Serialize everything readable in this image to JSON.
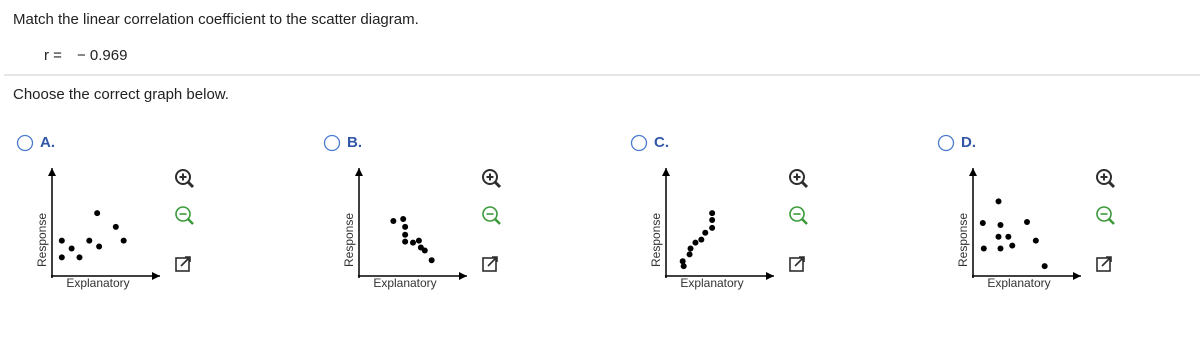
{
  "question": "Match the linear correlation coefficient to the scatter diagram.",
  "correlation": {
    "label": "r =",
    "value": "− 0.969"
  },
  "instruction": "Choose the correct graph below.",
  "options": [
    {
      "letter": "A.",
      "x_label": "Explanatory",
      "y_label": "Response",
      "xlim": [
        0,
        11
      ],
      "ylim": [
        0,
        11
      ],
      "x": [
        4.6,
        1.0,
        3.8,
        6.5,
        7.3,
        2.0,
        4.8,
        2.8,
        1.0
      ],
      "y": [
        6.4,
        3.6,
        3.6,
        5.0,
        3.6,
        2.8,
        3.0,
        1.9,
        1.9
      ]
    },
    {
      "letter": "B.",
      "x_label": "Explanatory",
      "y_label": "Response",
      "xlim": [
        0,
        11
      ],
      "ylim": [
        0,
        11
      ],
      "x": [
        3.5,
        4.5,
        4.7,
        4.7,
        4.7,
        5.5,
        6.1,
        6.3,
        6.7,
        7.4
      ],
      "y": [
        5.6,
        5.8,
        5.0,
        4.2,
        3.5,
        3.4,
        3.6,
        2.9,
        2.6,
        1.6
      ]
    },
    {
      "letter": "C.",
      "x_label": "Explanatory",
      "y_label": "Response",
      "xlim": [
        0,
        11
      ],
      "ylim": [
        0,
        11
      ],
      "x": [
        4.7,
        4.7,
        4.7,
        4.0,
        3.6,
        3.0,
        2.5,
        2.4,
        1.7,
        1.8
      ],
      "y": [
        6.4,
        5.7,
        4.9,
        4.4,
        3.7,
        3.4,
        2.8,
        2.2,
        1.5,
        1.0
      ]
    },
    {
      "letter": "D.",
      "x_label": "Explanatory",
      "y_label": "Response",
      "xlim": [
        0,
        11
      ],
      "ylim": [
        0,
        11
      ],
      "x": [
        2.6,
        1.0,
        2.8,
        5.5,
        3.6,
        2.6,
        1.1,
        4.0,
        6.4,
        2.8,
        7.3
      ],
      "y": [
        7.6,
        5.4,
        5.2,
        5.5,
        4.0,
        4.0,
        2.8,
        3.1,
        3.6,
        2.8,
        1.0
      ]
    }
  ]
}
